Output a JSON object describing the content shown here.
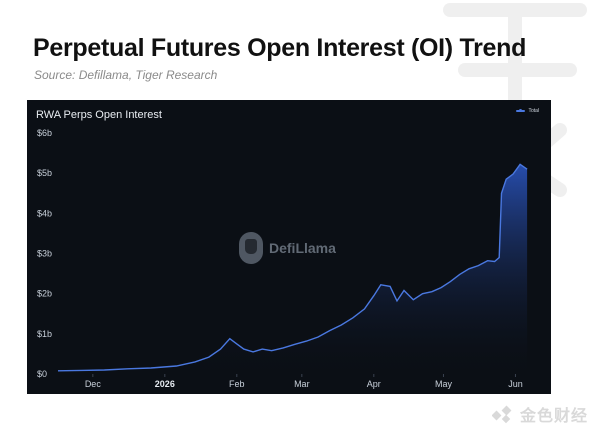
{
  "header": {
    "title": "Perpetual Futures Open Interest (OI) Trend",
    "source": "Source: Defillama, Tiger Research"
  },
  "watermark_text": "DefiLlama",
  "brand_text": "金色财经",
  "colors": {
    "line": "#4a78e0",
    "panel_bg": "#0b0f15",
    "area_top": "#2c58c8"
  },
  "chart_data": {
    "type": "area",
    "title": "RWA Perps Open Interest",
    "legend": [
      "Total"
    ],
    "legend_position": "top-right",
    "grid": false,
    "y_unit": "billion USD",
    "ylim": [
      0,
      6
    ],
    "y_ticks": [
      {
        "value": 0,
        "label": "$0"
      },
      {
        "value": 1,
        "label": "$1b"
      },
      {
        "value": 2,
        "label": "$2b"
      },
      {
        "value": 3,
        "label": "$3b"
      },
      {
        "value": 4,
        "label": "$4b"
      },
      {
        "value": 5,
        "label": "$5b"
      },
      {
        "value": 6,
        "label": "$6b"
      }
    ],
    "xlim": [
      "2025-11-16",
      "2026-06-12"
    ],
    "x_ticks": [
      {
        "date": "2025-12-01",
        "label": "Dec",
        "bold": false
      },
      {
        "date": "2026-01-01",
        "label": "2026",
        "bold": true
      },
      {
        "date": "2026-02-01",
        "label": "Feb",
        "bold": false
      },
      {
        "date": "2026-03-01",
        "label": "Mar",
        "bold": false
      },
      {
        "date": "2026-04-01",
        "label": "Apr",
        "bold": false
      },
      {
        "date": "2026-05-01",
        "label": "May",
        "bold": false
      },
      {
        "date": "2026-06-01",
        "label": "Jun",
        "bold": false
      }
    ],
    "series": [
      {
        "name": "Total",
        "points": [
          [
            "2025-11-16",
            0.08
          ],
          [
            "2025-11-26",
            0.09
          ],
          [
            "2025-12-06",
            0.1
          ],
          [
            "2025-12-16",
            0.13
          ],
          [
            "2025-12-26",
            0.15
          ],
          [
            "2026-01-06",
            0.2
          ],
          [
            "2026-01-14",
            0.3
          ],
          [
            "2026-01-20",
            0.42
          ],
          [
            "2026-01-25",
            0.62
          ],
          [
            "2026-01-29",
            0.88
          ],
          [
            "2026-02-01",
            0.75
          ],
          [
            "2026-02-04",
            0.62
          ],
          [
            "2026-02-08",
            0.55
          ],
          [
            "2026-02-12",
            0.62
          ],
          [
            "2026-02-16",
            0.58
          ],
          [
            "2026-02-21",
            0.65
          ],
          [
            "2026-02-26",
            0.74
          ],
          [
            "2026-03-03",
            0.82
          ],
          [
            "2026-03-08",
            0.92
          ],
          [
            "2026-03-13",
            1.08
          ],
          [
            "2026-03-18",
            1.22
          ],
          [
            "2026-03-23",
            1.4
          ],
          [
            "2026-03-28",
            1.62
          ],
          [
            "2026-04-01",
            1.95
          ],
          [
            "2026-04-04",
            2.22
          ],
          [
            "2026-04-08",
            2.18
          ],
          [
            "2026-04-11",
            1.82
          ],
          [
            "2026-04-14",
            2.08
          ],
          [
            "2026-04-18",
            1.85
          ],
          [
            "2026-04-22",
            2.0
          ],
          [
            "2026-04-26",
            2.05
          ],
          [
            "2026-04-30",
            2.15
          ],
          [
            "2026-05-04",
            2.3
          ],
          [
            "2026-05-08",
            2.48
          ],
          [
            "2026-05-12",
            2.62
          ],
          [
            "2026-05-16",
            2.7
          ],
          [
            "2026-05-20",
            2.82
          ],
          [
            "2026-05-23",
            2.8
          ],
          [
            "2026-05-25",
            2.9
          ],
          [
            "2026-05-26",
            4.5
          ],
          [
            "2026-05-28",
            4.85
          ],
          [
            "2026-05-31",
            4.98
          ],
          [
            "2026-06-03",
            5.22
          ],
          [
            "2026-06-06",
            5.1
          ]
        ]
      }
    ]
  }
}
